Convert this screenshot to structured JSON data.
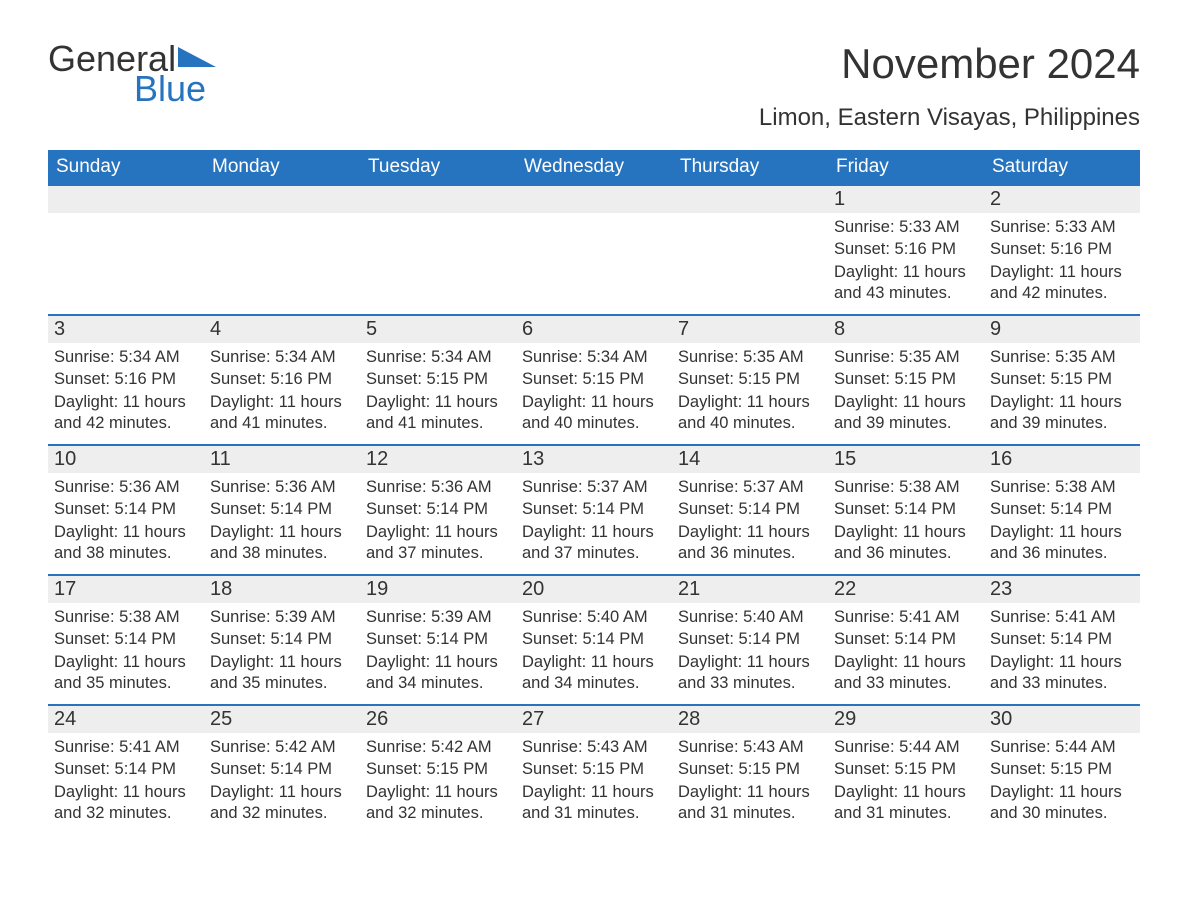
{
  "logo": {
    "line1": "General",
    "line2": "Blue",
    "shape_color": "#2674bf"
  },
  "title": "November 2024",
  "location": "Limon, Eastern Visayas, Philippines",
  "colors": {
    "primary": "#2674bf",
    "header_bg": "#2674bf",
    "header_text": "#ffffff",
    "daynum_bg": "#eeeeee",
    "text": "#333333",
    "background": "#ffffff"
  },
  "typography": {
    "title_fontsize": 42,
    "location_fontsize": 24,
    "dow_fontsize": 19,
    "daynum_fontsize": 20,
    "body_fontsize": 16.5
  },
  "calendar": {
    "day_names": [
      "Sunday",
      "Monday",
      "Tuesday",
      "Wednesday",
      "Thursday",
      "Friday",
      "Saturday"
    ],
    "label_sunrise": "Sunrise: ",
    "label_sunset": "Sunset: ",
    "label_daylight_prefix": "Daylight: ",
    "weeks": [
      [
        null,
        null,
        null,
        null,
        null,
        {
          "n": "1",
          "sunrise": "5:33 AM",
          "sunset": "5:16 PM",
          "daylight": "11 hours and 43 minutes."
        },
        {
          "n": "2",
          "sunrise": "5:33 AM",
          "sunset": "5:16 PM",
          "daylight": "11 hours and 42 minutes."
        }
      ],
      [
        {
          "n": "3",
          "sunrise": "5:34 AM",
          "sunset": "5:16 PM",
          "daylight": "11 hours and 42 minutes."
        },
        {
          "n": "4",
          "sunrise": "5:34 AM",
          "sunset": "5:16 PM",
          "daylight": "11 hours and 41 minutes."
        },
        {
          "n": "5",
          "sunrise": "5:34 AM",
          "sunset": "5:15 PM",
          "daylight": "11 hours and 41 minutes."
        },
        {
          "n": "6",
          "sunrise": "5:34 AM",
          "sunset": "5:15 PM",
          "daylight": "11 hours and 40 minutes."
        },
        {
          "n": "7",
          "sunrise": "5:35 AM",
          "sunset": "5:15 PM",
          "daylight": "11 hours and 40 minutes."
        },
        {
          "n": "8",
          "sunrise": "5:35 AM",
          "sunset": "5:15 PM",
          "daylight": "11 hours and 39 minutes."
        },
        {
          "n": "9",
          "sunrise": "5:35 AM",
          "sunset": "5:15 PM",
          "daylight": "11 hours and 39 minutes."
        }
      ],
      [
        {
          "n": "10",
          "sunrise": "5:36 AM",
          "sunset": "5:14 PM",
          "daylight": "11 hours and 38 minutes."
        },
        {
          "n": "11",
          "sunrise": "5:36 AM",
          "sunset": "5:14 PM",
          "daylight": "11 hours and 38 minutes."
        },
        {
          "n": "12",
          "sunrise": "5:36 AM",
          "sunset": "5:14 PM",
          "daylight": "11 hours and 37 minutes."
        },
        {
          "n": "13",
          "sunrise": "5:37 AM",
          "sunset": "5:14 PM",
          "daylight": "11 hours and 37 minutes."
        },
        {
          "n": "14",
          "sunrise": "5:37 AM",
          "sunset": "5:14 PM",
          "daylight": "11 hours and 36 minutes."
        },
        {
          "n": "15",
          "sunrise": "5:38 AM",
          "sunset": "5:14 PM",
          "daylight": "11 hours and 36 minutes."
        },
        {
          "n": "16",
          "sunrise": "5:38 AM",
          "sunset": "5:14 PM",
          "daylight": "11 hours and 36 minutes."
        }
      ],
      [
        {
          "n": "17",
          "sunrise": "5:38 AM",
          "sunset": "5:14 PM",
          "daylight": "11 hours and 35 minutes."
        },
        {
          "n": "18",
          "sunrise": "5:39 AM",
          "sunset": "5:14 PM",
          "daylight": "11 hours and 35 minutes."
        },
        {
          "n": "19",
          "sunrise": "5:39 AM",
          "sunset": "5:14 PM",
          "daylight": "11 hours and 34 minutes."
        },
        {
          "n": "20",
          "sunrise": "5:40 AM",
          "sunset": "5:14 PM",
          "daylight": "11 hours and 34 minutes."
        },
        {
          "n": "21",
          "sunrise": "5:40 AM",
          "sunset": "5:14 PM",
          "daylight": "11 hours and 33 minutes."
        },
        {
          "n": "22",
          "sunrise": "5:41 AM",
          "sunset": "5:14 PM",
          "daylight": "11 hours and 33 minutes."
        },
        {
          "n": "23",
          "sunrise": "5:41 AM",
          "sunset": "5:14 PM",
          "daylight": "11 hours and 33 minutes."
        }
      ],
      [
        {
          "n": "24",
          "sunrise": "5:41 AM",
          "sunset": "5:14 PM",
          "daylight": "11 hours and 32 minutes."
        },
        {
          "n": "25",
          "sunrise": "5:42 AM",
          "sunset": "5:14 PM",
          "daylight": "11 hours and 32 minutes."
        },
        {
          "n": "26",
          "sunrise": "5:42 AM",
          "sunset": "5:15 PM",
          "daylight": "11 hours and 32 minutes."
        },
        {
          "n": "27",
          "sunrise": "5:43 AM",
          "sunset": "5:15 PM",
          "daylight": "11 hours and 31 minutes."
        },
        {
          "n": "28",
          "sunrise": "5:43 AM",
          "sunset": "5:15 PM",
          "daylight": "11 hours and 31 minutes."
        },
        {
          "n": "29",
          "sunrise": "5:44 AM",
          "sunset": "5:15 PM",
          "daylight": "11 hours and 31 minutes."
        },
        {
          "n": "30",
          "sunrise": "5:44 AM",
          "sunset": "5:15 PM",
          "daylight": "11 hours and 30 minutes."
        }
      ]
    ]
  }
}
